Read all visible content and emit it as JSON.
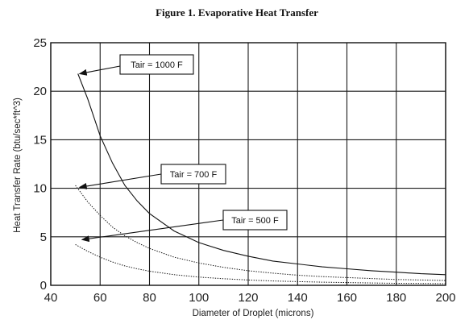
{
  "chart_data": {
    "type": "line",
    "title": "Figure 1.  Evaporative Heat Transfer",
    "xlabel": "Diameter of Droplet (microns)",
    "ylabel": "Heat Transfer Rate (btu/sec*ft^3)",
    "xlim": [
      40,
      200
    ],
    "ylim": [
      0,
      25
    ],
    "xticks": [
      "40",
      "60",
      "80",
      "100",
      "120",
      "140",
      "160",
      "180",
      "200"
    ],
    "yticks": [
      "0",
      "5",
      "10",
      "15",
      "20",
      "25"
    ],
    "grid": true,
    "series": [
      {
        "name": "Tair = 1000 F",
        "style": "solid",
        "x": [
          51,
          55,
          60,
          65,
          70,
          75,
          80,
          90,
          100,
          110,
          120,
          130,
          140,
          150,
          160,
          170,
          180,
          190,
          200
        ],
        "y": [
          21.8,
          19.2,
          15.4,
          12.6,
          10.3,
          8.7,
          7.4,
          5.6,
          4.4,
          3.6,
          3.0,
          2.5,
          2.2,
          1.9,
          1.7,
          1.5,
          1.35,
          1.2,
          1.1
        ]
      },
      {
        "name": "Tair = 700 F",
        "style": "dotted",
        "x": [
          50,
          55,
          60,
          65,
          70,
          75,
          80,
          90,
          100,
          110,
          120,
          130,
          140,
          150,
          160,
          170,
          180,
          190,
          200
        ],
        "y": [
          10.3,
          8.6,
          7.2,
          6.0,
          5.1,
          4.4,
          3.8,
          2.9,
          2.3,
          1.85,
          1.5,
          1.25,
          1.05,
          0.9,
          0.8,
          0.7,
          0.6,
          0.55,
          0.5
        ]
      },
      {
        "name": "Tair = 500 F",
        "style": "dotted",
        "x": [
          50,
          55,
          60,
          65,
          70,
          75,
          80,
          90,
          100,
          110,
          120,
          130,
          140,
          150,
          160,
          170,
          180,
          190,
          200
        ],
        "y": [
          4.2,
          3.5,
          2.9,
          2.4,
          2.0,
          1.7,
          1.45,
          1.1,
          0.85,
          0.68,
          0.55,
          0.45,
          0.38,
          0.32,
          0.28,
          0.24,
          0.21,
          0.19,
          0.17
        ]
      }
    ],
    "annotations": [
      {
        "text": "Tair = 1000 F",
        "points_to": [
          51,
          21.8
        ]
      },
      {
        "text": "Tair = 700 F",
        "points_to": [
          51,
          10.1
        ]
      },
      {
        "text": "Tair = 500 F",
        "points_to": [
          52,
          4.7
        ]
      }
    ]
  }
}
